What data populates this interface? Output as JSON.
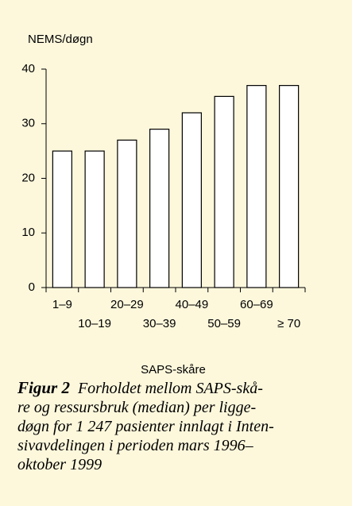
{
  "chart_data": {
    "type": "bar",
    "y_label": "NEMS/døgn",
    "x_label": "SAPS-skåre",
    "categories": [
      "1–9",
      "10–19",
      "20–29",
      "30–39",
      "40–49",
      "50–59",
      "60–69",
      "≥ 70"
    ],
    "values": [
      25,
      25,
      27,
      29,
      32,
      35,
      37,
      37
    ],
    "color": "#ffffff",
    "ylim": [
      0,
      40
    ],
    "yticks": [
      0,
      10,
      20,
      30,
      40
    ],
    "grid": false
  },
  "caption": {
    "label": "Figur 2",
    "lines": [
      "Forholdet mellom SAPS-skå-",
      "re og ressursbruk (median) per ligge-",
      "døgn for 1 247 pasienter innlagt i Inten-",
      "sivavdelingen i perioden mars 1996–",
      "oktober 1999"
    ]
  }
}
